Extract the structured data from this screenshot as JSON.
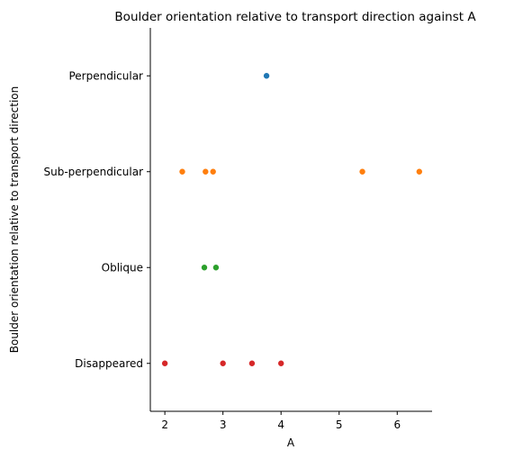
{
  "chart_data": {
    "type": "scatter",
    "title": "Boulder orientation relative to transport direction against A",
    "xlabel": "A",
    "ylabel": "Boulder orientation relative to transport direction",
    "xlim": [
      1.75,
      6.6
    ],
    "x_ticks": [
      2,
      3,
      4,
      5,
      6
    ],
    "x_tick_labels": [
      "2",
      "3",
      "4",
      "5",
      "6"
    ],
    "categories": [
      "Perpendicular",
      "Sub-perpendicular",
      "Oblique",
      "Disappeared"
    ],
    "grid": false,
    "series": [
      {
        "category": "Perpendicular",
        "color": "#1f77b4",
        "x": [
          3.75
        ]
      },
      {
        "category": "Sub-perpendicular",
        "color": "#ff7f0e",
        "x": [
          2.3,
          2.7,
          2.83,
          5.4,
          6.38
        ]
      },
      {
        "category": "Oblique",
        "color": "#2ca02c",
        "x": [
          2.68,
          2.88
        ]
      },
      {
        "category": "Disappeared",
        "color": "#d62728",
        "x": [
          2.0,
          3.0,
          3.5,
          4.0
        ]
      }
    ]
  }
}
